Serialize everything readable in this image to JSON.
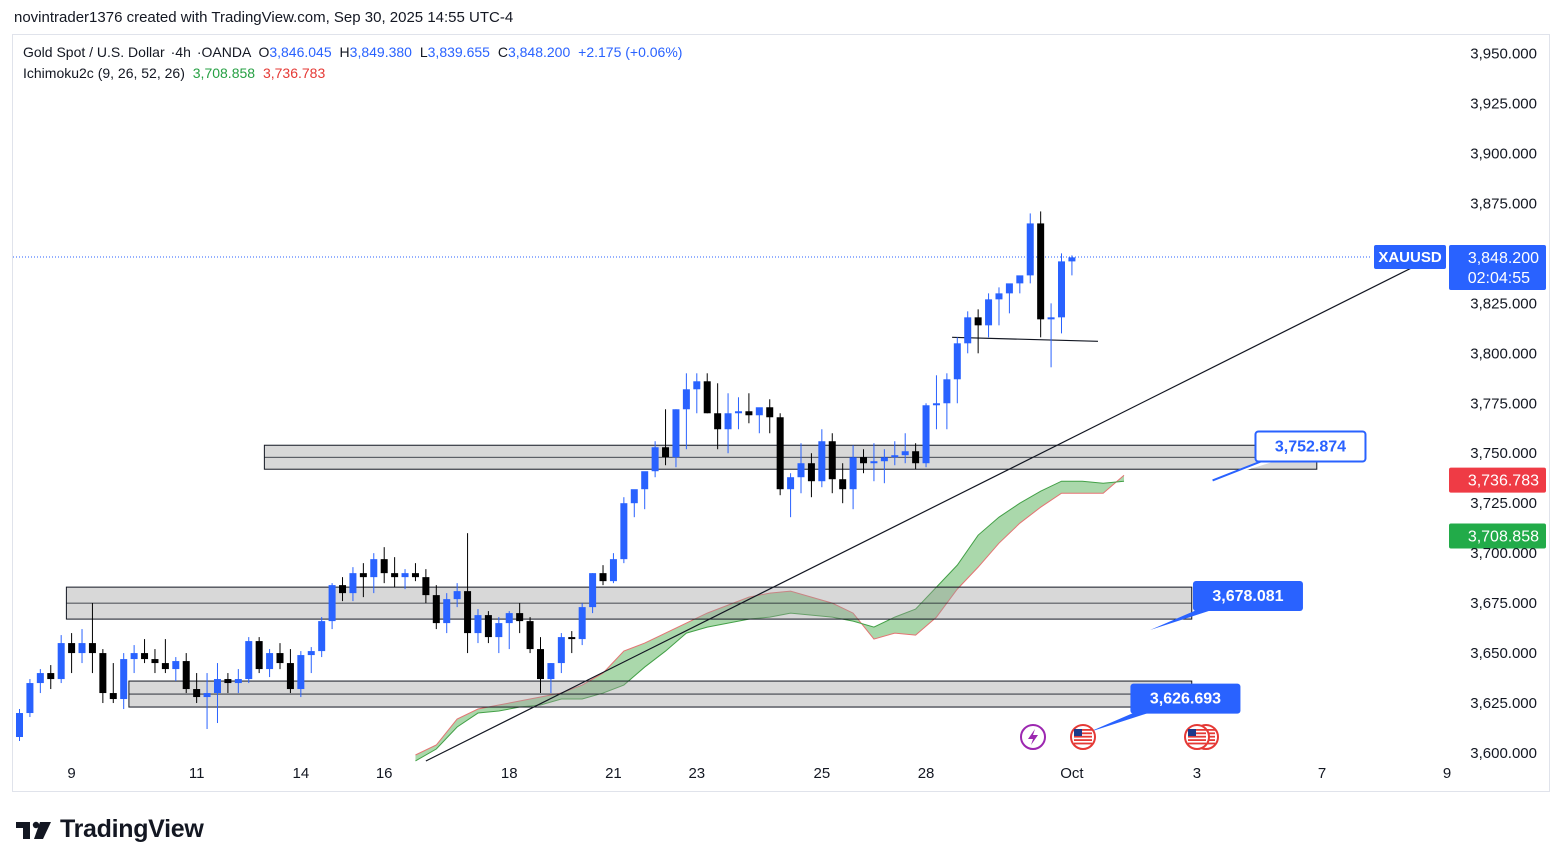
{
  "header": {
    "attribution": "novintrader1376 created with TradingView.com, Sep 30, 2025 14:55 UTC-4"
  },
  "legend": {
    "symbol_name": "Gold Spot / U.S. Dollar",
    "interval": "4h",
    "exchange": "OANDA",
    "open_label": "O",
    "open": "3,846.045",
    "high_label": "H",
    "high": "3,849.380",
    "low_label": "L",
    "low": "3,839.655",
    "close_label": "C",
    "close": "3,848.200",
    "change": "+2.175 (+0.06%)",
    "indicator_name": "Ichimoku2c (9, 26, 52, 26)",
    "indicator_value_1": "3,708.858",
    "indicator_value_2": "3,736.783"
  },
  "footer": {
    "brand": "TradingView"
  },
  "colors": {
    "up": "#2962ff",
    "down": "#000000",
    "cloud": "#a5d6a7",
    "cloud_edge_red": "#e57373",
    "cloud_edge_green": "#43a047",
    "price_tag": "#2962ff",
    "red_tag": "#ef3b45",
    "green_tag": "#22ab49"
  },
  "chart_data": {
    "type": "candlestick",
    "symbol": "XAUUSD",
    "ylim": [
      3590,
      3960
    ],
    "y_ticks": [
      "3,950.000",
      "3,925.000",
      "3,900.000",
      "3,875.000",
      "3,825.000",
      "3,800.000",
      "3,775.000",
      "3,750.000",
      "3,725.000",
      "3,700.000",
      "3,675.000",
      "3,650.000",
      "3,625.000",
      "3,600.000"
    ],
    "x_ticks": [
      {
        "i": 5,
        "label": "9"
      },
      {
        "i": 17,
        "label": "11"
      },
      {
        "i": 27,
        "label": "14"
      },
      {
        "i": 35,
        "label": "16"
      },
      {
        "i": 47,
        "label": "18"
      },
      {
        "i": 57,
        "label": "21"
      },
      {
        "i": 65,
        "label": "23"
      },
      {
        "i": 77,
        "label": "25"
      },
      {
        "i": 87,
        "label": "28"
      },
      {
        "i": 101,
        "label": "Oct"
      },
      {
        "i": 113,
        "label": "3"
      },
      {
        "i": 125,
        "label": "7"
      },
      {
        "i": 137,
        "label": "9"
      }
    ],
    "candles": [
      [
        3608,
        3622,
        3606,
        3620
      ],
      [
        3620,
        3637,
        3618,
        3635
      ],
      [
        3635,
        3642,
        3630,
        3640
      ],
      [
        3640,
        3644,
        3632,
        3637
      ],
      [
        3637,
        3659,
        3635,
        3655
      ],
      [
        3655,
        3660,
        3640,
        3650
      ],
      [
        3650,
        3662,
        3645,
        3655
      ],
      [
        3655,
        3675,
        3640,
        3650
      ],
      [
        3650,
        3652,
        3625,
        3630
      ],
      [
        3630,
        3645,
        3625,
        3627
      ],
      [
        3627,
        3650,
        3622,
        3647
      ],
      [
        3647,
        3654,
        3640,
        3650
      ],
      [
        3650,
        3657,
        3645,
        3647
      ],
      [
        3647,
        3652,
        3640,
        3645
      ],
      [
        3645,
        3657,
        3640,
        3642
      ],
      [
        3642,
        3648,
        3636,
        3646
      ],
      [
        3646,
        3650,
        3630,
        3632
      ],
      [
        3632,
        3640,
        3625,
        3628
      ],
      [
        3628,
        3640,
        3612,
        3630
      ],
      [
        3630,
        3645,
        3615,
        3637
      ],
      [
        3637,
        3640,
        3630,
        3635
      ],
      [
        3635,
        3642,
        3630,
        3637
      ],
      [
        3637,
        3658,
        3635,
        3656
      ],
      [
        3656,
        3658,
        3640,
        3642
      ],
      [
        3642,
        3652,
        3638,
        3650
      ],
      [
        3650,
        3655,
        3642,
        3645
      ],
      [
        3645,
        3652,
        3630,
        3632
      ],
      [
        3632,
        3651,
        3628,
        3649
      ],
      [
        3649,
        3653,
        3640,
        3651
      ],
      [
        3651,
        3668,
        3648,
        3666
      ],
      [
        3666,
        3685,
        3662,
        3684
      ],
      [
        3684,
        3688,
        3676,
        3680
      ],
      [
        3680,
        3693,
        3676,
        3690
      ],
      [
        3690,
        3695,
        3678,
        3688
      ],
      [
        3688,
        3700,
        3680,
        3697
      ],
      [
        3697,
        3703,
        3685,
        3690
      ],
      [
        3690,
        3698,
        3683,
        3688
      ],
      [
        3688,
        3692,
        3682,
        3690
      ],
      [
        3690,
        3695,
        3686,
        3688
      ],
      [
        3688,
        3692,
        3675,
        3679
      ],
      [
        3679,
        3684,
        3662,
        3665
      ],
      [
        3665,
        3680,
        3660,
        3677
      ],
      [
        3677,
        3685,
        3673,
        3681
      ],
      [
        3681,
        3710,
        3650,
        3660
      ],
      [
        3660,
        3672,
        3655,
        3669
      ],
      [
        3669,
        3671,
        3655,
        3658
      ],
      [
        3658,
        3668,
        3650,
        3665
      ],
      [
        3665,
        3671,
        3652,
        3670
      ],
      [
        3670,
        3675,
        3660,
        3666
      ],
      [
        3666,
        3668,
        3650,
        3652
      ],
      [
        3652,
        3658,
        3630,
        3637
      ],
      [
        3637,
        3645,
        3630,
        3645
      ],
      [
        3645,
        3660,
        3640,
        3658
      ],
      [
        3658,
        3661,
        3650,
        3657
      ],
      [
        3657,
        3675,
        3654,
        3673
      ],
      [
        3673,
        3690,
        3670,
        3690
      ],
      [
        3690,
        3694,
        3684,
        3686
      ],
      [
        3686,
        3700,
        3685,
        3697
      ],
      [
        3697,
        3728,
        3695,
        3725
      ],
      [
        3725,
        3730,
        3718,
        3732
      ],
      [
        3732,
        3740,
        3722,
        3741
      ],
      [
        3741,
        3756,
        3738,
        3753
      ],
      [
        3753,
        3772,
        3744,
        3748
      ],
      [
        3748,
        3772,
        3743,
        3772
      ],
      [
        3772,
        3790,
        3752,
        3782
      ],
      [
        3782,
        3790,
        3770,
        3786
      ],
      [
        3786,
        3790,
        3770,
        3770
      ],
      [
        3770,
        3785,
        3752,
        3762
      ],
      [
        3762,
        3780,
        3750,
        3770
      ],
      [
        3770,
        3778,
        3762,
        3771
      ],
      [
        3771,
        3780,
        3765,
        3769
      ],
      [
        3769,
        3772,
        3760,
        3773
      ],
      [
        3773,
        3777,
        3760,
        3768
      ],
      [
        3768,
        3770,
        3729,
        3732
      ],
      [
        3732,
        3740,
        3718,
        3738
      ],
      [
        3738,
        3755,
        3730,
        3745
      ],
      [
        3745,
        3750,
        3728,
        3736
      ],
      [
        3736,
        3762,
        3733,
        3756
      ],
      [
        3756,
        3760,
        3730,
        3737
      ],
      [
        3737,
        3745,
        3725,
        3732
      ],
      [
        3732,
        3754,
        3722,
        3748
      ],
      [
        3748,
        3752,
        3740,
        3745
      ],
      [
        3745,
        3755,
        3736,
        3746
      ],
      [
        3746,
        3752,
        3735,
        3748
      ],
      [
        3748,
        3756,
        3744,
        3749
      ],
      [
        3749,
        3760,
        3745,
        3751
      ],
      [
        3751,
        3755,
        3742,
        3745
      ],
      [
        3745,
        3775,
        3743,
        3774
      ],
      [
        3774,
        3789,
        3762,
        3775
      ],
      [
        3775,
        3790,
        3762,
        3787
      ],
      [
        3787,
        3808,
        3775,
        3805
      ],
      [
        3805,
        3821,
        3800,
        3818
      ],
      [
        3818,
        3822,
        3800,
        3814
      ],
      [
        3814,
        3830,
        3808,
        3827
      ],
      [
        3827,
        3833,
        3814,
        3830
      ],
      [
        3830,
        3832,
        3820,
        3835
      ],
      [
        3835,
        3837,
        3830,
        3839
      ],
      [
        3839,
        3870,
        3835,
        3865
      ],
      [
        3865,
        3871,
        3808,
        3817
      ],
      [
        3817,
        3825,
        3793,
        3818
      ],
      [
        3818,
        3850,
        3810,
        3846
      ],
      [
        3846,
        3849,
        3839,
        3848
      ]
    ],
    "zones": [
      {
        "from": 3742,
        "to": 3754,
        "x0": 23.5,
        "x1": 124.5
      },
      {
        "from": 3667,
        "to": 3683,
        "x0": 4.5,
        "x1": 112.5
      },
      {
        "from": 3623,
        "to": 3636,
        "x0": 10.5,
        "x1": 112.5
      }
    ],
    "cloud": [
      [
        38,
        3599,
        3596
      ],
      [
        40,
        3604,
        3602
      ],
      [
        42,
        3617,
        3613
      ],
      [
        44,
        3622,
        3620
      ],
      [
        46,
        3624,
        3621
      ],
      [
        48,
        3626,
        3623
      ],
      [
        50,
        3628,
        3624
      ],
      [
        52,
        3630,
        3627
      ],
      [
        54,
        3634,
        3627
      ],
      [
        56,
        3640,
        3630
      ],
      [
        58,
        3651,
        3634
      ],
      [
        60,
        3655,
        3643
      ],
      [
        62,
        3660,
        3651
      ],
      [
        64,
        3665,
        3660
      ],
      [
        66,
        3670,
        3663
      ],
      [
        68,
        3674,
        3665
      ],
      [
        70,
        3678,
        3667
      ],
      [
        72,
        3680,
        3668
      ],
      [
        74,
        3681,
        3670
      ],
      [
        76,
        3678,
        3669
      ],
      [
        78,
        3675,
        3668
      ],
      [
        80,
        3670,
        3666
      ],
      [
        82,
        3657,
        3663
      ],
      [
        84,
        3660,
        3668
      ],
      [
        86,
        3659,
        3672
      ],
      [
        88,
        3668,
        3683
      ],
      [
        90,
        3682,
        3694
      ],
      [
        92,
        3693,
        3709
      ],
      [
        94,
        3705,
        3718
      ],
      [
        96,
        3715,
        3725
      ],
      [
        98,
        3723,
        3731
      ],
      [
        100,
        3730,
        3736
      ],
      [
        102,
        3730,
        3736
      ],
      [
        104,
        3730,
        3735
      ],
      [
        106,
        3739,
        3736
      ]
    ],
    "trendline": [
      [
        39,
        3596
      ],
      [
        136,
        3849
      ]
    ],
    "neckline": {
      "x0": 89.5,
      "x1": 103.5,
      "y0": 3808,
      "y1": 3806
    },
    "current_price_line": 3848.2,
    "labels": [
      {
        "text": "3,752.874",
        "y": 3752.874,
        "style": "outline",
        "x": 119
      },
      {
        "text": "3,678.081",
        "y": 3678.081,
        "style": "filled",
        "x": 113
      },
      {
        "text": "3,626.693",
        "y": 3626.693,
        "style": "filled",
        "x": 107
      }
    ],
    "price_tags": [
      {
        "price": "3,848.200",
        "sub": "02:04:55",
        "y": 3848.2,
        "kind": "current"
      },
      {
        "price": "3,736.783",
        "y": 3736.783,
        "kind": "red"
      },
      {
        "price": "3,708.858",
        "y": 3708.858,
        "kind": "green"
      }
    ],
    "symbol_tag": "XAUUSD",
    "event_icons": [
      "lightning-event",
      "us-flag-event",
      "us-flag-event-double"
    ]
  }
}
